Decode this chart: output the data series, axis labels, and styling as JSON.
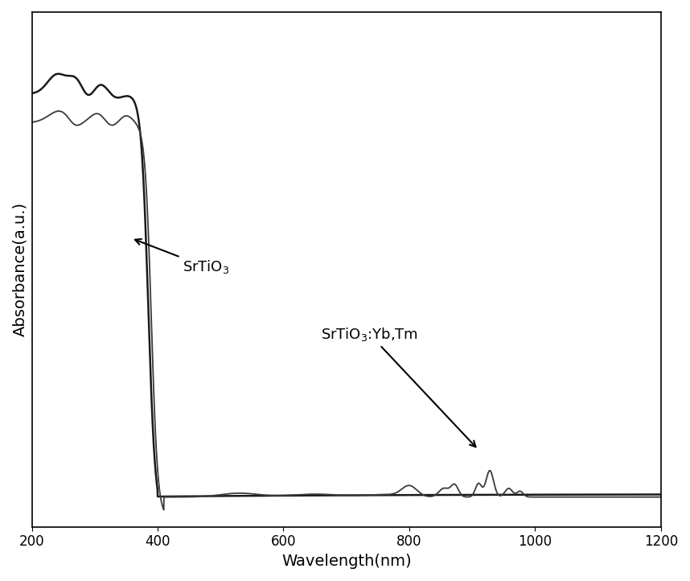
{
  "xlabel": "Wavelength(nm)",
  "ylabel": "Absorbance(a.u.)",
  "xlim": [
    200,
    1200
  ],
  "ylim": [
    -0.02,
    1.05
  ],
  "xticks": [
    200,
    400,
    600,
    800,
    1000,
    1200
  ],
  "line_color1": "#3a3a3a",
  "line_color2": "#1a1a1a",
  "annotation1_text": "SrTiO$_3$",
  "annotation2_text": "SrTiO$_3$:Yb,Tm",
  "background_color": "#ffffff",
  "label_fontsize": 14,
  "tick_fontsize": 12
}
